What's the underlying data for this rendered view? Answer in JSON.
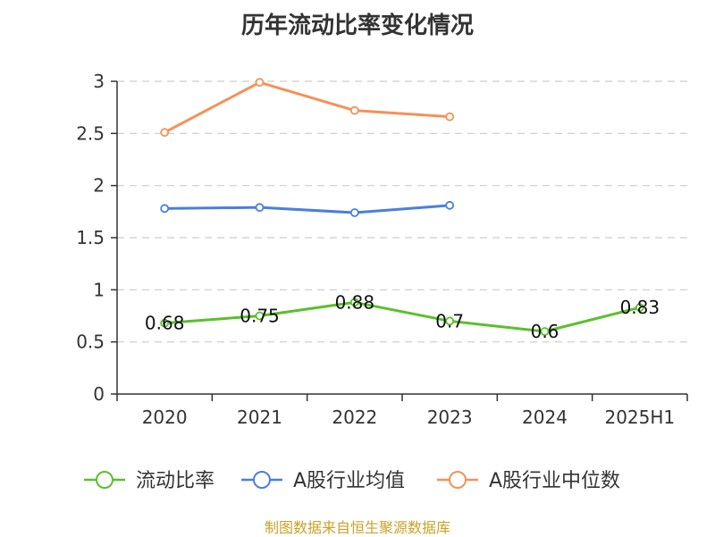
{
  "chart_data": {
    "type": "line",
    "title": "历年流动比率变化情况",
    "categories": [
      "2020",
      "2021",
      "2022",
      "2023",
      "2024",
      "2025H1"
    ],
    "ylim": [
      0,
      3
    ],
    "yticks": [
      "0",
      "0.5",
      "1",
      "1.5",
      "2",
      "2.5",
      "3"
    ],
    "grid": true,
    "legend_position": "bottom",
    "series": [
      {
        "name": "流动比率",
        "color": "#5ac02c",
        "values": [
          0.68,
          0.75,
          0.88,
          0.7,
          0.6,
          0.83
        ],
        "labels": [
          "0.68",
          "0.75",
          "0.88",
          "0.7",
          "0.6",
          "0.83"
        ]
      },
      {
        "name": "A股行业均值",
        "color": "#4a7fdc",
        "values": [
          1.78,
          1.79,
          1.74,
          1.81,
          null,
          null
        ]
      },
      {
        "name": "A股行业中位数",
        "color": "#f59157",
        "values": [
          2.51,
          2.99,
          2.72,
          2.66,
          null,
          null
        ]
      }
    ]
  },
  "footer": {
    "source": "制图数据来自恒生聚源数据库"
  }
}
